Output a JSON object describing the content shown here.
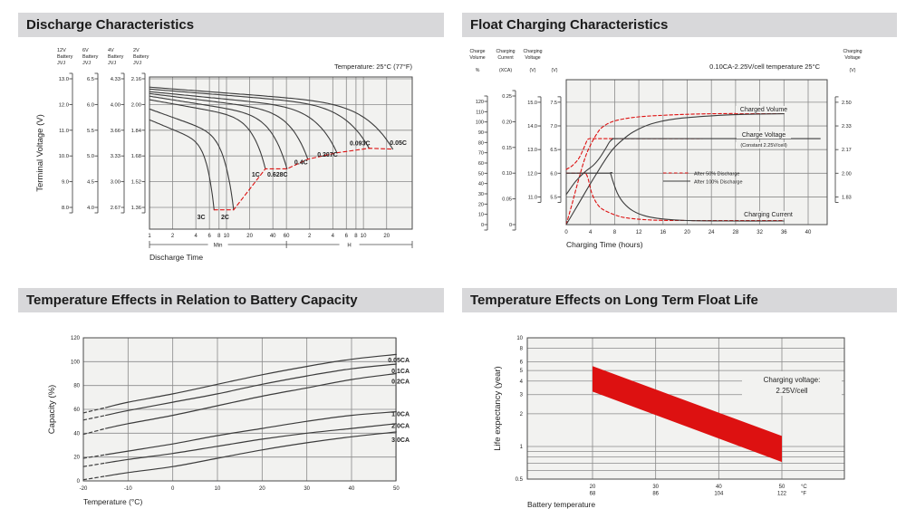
{
  "colors": {
    "header_bg": "#d8d8da",
    "header_text": "#1b1b1b",
    "plot_bg": "#f2f2f0",
    "grid": "#8a8a8a",
    "border": "#4a4a4a",
    "curve": "#3c3c3c",
    "red": "#dd1111"
  },
  "chart_data": [
    {
      "id": "discharge",
      "type": "line",
      "title": "Discharge Characteristics",
      "note": "Temperature: 25°C (77°F)",
      "ylabel": "Terminal Voltage (V)",
      "xlabel": "Discharge Time",
      "x_range_labels": [
        "Min",
        "H"
      ],
      "y_scales": [
        {
          "header": [
            "12V",
            "Battery",
            "JVJ"
          ],
          "ticks": [
            "13.0",
            "12.0",
            "11.0",
            "10.0",
            "9.0",
            "8.0"
          ]
        },
        {
          "header": [
            "6V",
            "Battery",
            "JVJ"
          ],
          "ticks": [
            "6.5",
            "6.0",
            "5.5",
            "5.0",
            "4.5",
            "4.0"
          ]
        },
        {
          "header": [
            "4V",
            "Battery",
            "JVJ"
          ],
          "ticks": [
            "4.33",
            "4.00",
            "3.66",
            "3.33",
            "3.00",
            "2.67"
          ]
        },
        {
          "header": [
            "2V",
            "Battery",
            "JVJ"
          ],
          "ticks": [
            "2.16",
            "2.00",
            "1.84",
            "1.68",
            "1.52",
            "1.36"
          ]
        }
      ],
      "y2v_gridlines": [
        2.16,
        2.0,
        1.84,
        1.68,
        1.52,
        1.36
      ],
      "x_ticks_minutes": [
        1,
        2,
        4,
        6,
        8,
        10,
        20,
        40,
        60
      ],
      "x_ticks_hours": [
        2,
        4,
        6,
        8,
        10,
        20
      ],
      "series": [
        {
          "name": "3C",
          "v_start": 1.905,
          "t_end_min": 6.9,
          "v_end": 1.345,
          "label_t": 4.7,
          "label_v": 1.298
        },
        {
          "name": "2C",
          "v_start": 1.972,
          "t_end_min": 12.4,
          "v_end": 1.345,
          "label_t": 9.6,
          "label_v": 1.298
        },
        {
          "name": "1C",
          "v_start": 2.03,
          "t_end_min": 32,
          "v_end": 1.6,
          "label_t": 24,
          "label_v": 1.562
        },
        {
          "name": "0.628C",
          "v_start": 2.052,
          "t_end_min": 61,
          "v_end": 1.6,
          "label_t": 46,
          "label_v": 1.562
        },
        {
          "name": "0.4C",
          "v_start": 2.068,
          "t_end_min": 114,
          "v_end": 1.66,
          "label_t": 93,
          "label_v": 1.638
        },
        {
          "name": "0.207C",
          "v_start": 2.08,
          "t_end_min": 272,
          "v_end": 1.7,
          "label_t": 205,
          "label_v": 1.686
        },
        {
          "name": "0.093C",
          "v_start": 2.096,
          "t_end_min": 710,
          "v_end": 1.728,
          "label_t": 540,
          "label_v": 1.756
        },
        {
          "name": "0.05C",
          "v_start": 2.108,
          "t_end_min": 1440,
          "v_end": 1.723,
          "label_t": 1700,
          "label_v": 1.76
        }
      ]
    },
    {
      "id": "float_charging",
      "type": "line",
      "title": "Float Charging Characteristics",
      "note": "0.10CA-2.25V/cell  temperature 25°C",
      "xlabel": "Charging Time (hours)",
      "x_ticks": [
        0,
        4,
        8,
        12,
        16,
        20,
        24,
        28,
        32,
        36,
        40
      ],
      "y_scales_left": [
        {
          "header": [
            "Charge",
            "Volume"
          ],
          "unit": "%",
          "ticks": [
            "120",
            "110",
            "100",
            "90",
            "80",
            "70",
            "60",
            "50",
            "40",
            "30",
            "20",
            "10",
            "0"
          ]
        },
        {
          "header": [
            "Charging",
            "Current"
          ],
          "unit": "(XCA)",
          "ticks": [
            "0.25",
            "0.20",
            "0.15",
            "0.10",
            "0.05",
            "0"
          ]
        },
        {
          "header": [
            "Charging",
            "Voltage"
          ],
          "unit": "(V)",
          "ticks": [
            "15.0",
            "14.0",
            "13.0",
            "12.0",
            "11.0"
          ]
        },
        {
          "header": [],
          "unit": "(V)",
          "ticks": [
            "7.5",
            "7.0",
            "6.5",
            "6.0",
            "5.5"
          ]
        }
      ],
      "y_scale_right": {
        "header": [
          "Charging",
          "Voltage"
        ],
        "unit": "(V)",
        "ticks": [
          "2.50",
          "2.33",
          "2.17",
          "2.00",
          "1.83"
        ]
      },
      "annotations": {
        "charged_volume": "Charged Volume",
        "charge_voltage": "Charge Voltage",
        "constant": "(Constant 2.25V/cell)",
        "charging_current": "Charging Current"
      },
      "legend": [
        {
          "label": "After  50% Discharge",
          "style": "dashed"
        },
        {
          "label": "After 100% Discharge",
          "style": "solid"
        }
      ],
      "series": [
        {
          "name": "charged-volume-50",
          "style": "dashed",
          "scale": "volume",
          "points": [
            [
              0,
              0
            ],
            [
              1,
              21
            ],
            [
              2,
              43
            ],
            [
              3,
              63
            ],
            [
              3.8,
              75
            ],
            [
              5,
              88
            ],
            [
              6,
              95
            ],
            [
              8,
              101
            ],
            [
              12,
              105
            ],
            [
              18,
              107
            ],
            [
              24,
              108
            ],
            [
              36,
              108.5
            ]
          ]
        },
        {
          "name": "charged-volume-100",
          "style": "solid",
          "scale": "volume",
          "points": [
            [
              0,
              0
            ],
            [
              2,
              20
            ],
            [
              4,
              40
            ],
            [
              6,
              59
            ],
            [
              7.5,
              72
            ],
            [
              9,
              81
            ],
            [
              11,
              90
            ],
            [
              14,
              98
            ],
            [
              18,
              103
            ],
            [
              24,
              106
            ],
            [
              30,
              107.5
            ],
            [
              36,
              108
            ]
          ]
        },
        {
          "name": "charge-voltage-50",
          "style": "dashed",
          "scale": "v6",
          "points": [
            [
              0,
              6.08
            ],
            [
              1,
              6.16
            ],
            [
              2,
              6.3
            ],
            [
              2.8,
              6.5
            ],
            [
              3.4,
              6.68
            ],
            [
              3.8,
              6.73
            ],
            [
              5,
              6.73
            ],
            [
              8,
              6.73
            ],
            [
              16,
              6.73
            ],
            [
              22.5,
              6.73
            ]
          ]
        },
        {
          "name": "charge-voltage-100",
          "style": "solid",
          "scale": "v6",
          "points": [
            [
              0,
              5.55
            ],
            [
              1.5,
              5.82
            ],
            [
              3,
              6.02
            ],
            [
              4.5,
              6.17
            ],
            [
              5.5,
              6.32
            ],
            [
              6.5,
              6.52
            ],
            [
              7.2,
              6.67
            ],
            [
              7.8,
              6.73
            ],
            [
              8.5,
              6.73
            ],
            [
              16,
              6.73
            ],
            [
              42,
              6.73
            ]
          ]
        },
        {
          "name": "charging-current-50",
          "style": "dashed",
          "scale": "current",
          "points": [
            [
              0,
              0.1
            ],
            [
              3,
              0.1
            ],
            [
              3.2,
              0.1
            ],
            [
              3.6,
              0.09
            ],
            [
              4.2,
              0.062
            ],
            [
              5,
              0.042
            ],
            [
              6,
              0.03
            ],
            [
              8,
              0.019
            ],
            [
              10,
              0.013
            ],
            [
              14,
              0.009
            ],
            [
              20,
              0.008
            ],
            [
              36,
              0.008
            ]
          ]
        },
        {
          "name": "charging-current-100",
          "style": "solid",
          "scale": "current",
          "points": [
            [
              0,
              0.1
            ],
            [
              7,
              0.1
            ],
            [
              7.3,
              0.1
            ],
            [
              7.7,
              0.085
            ],
            [
              8.5,
              0.06
            ],
            [
              9.5,
              0.042
            ],
            [
              11,
              0.027
            ],
            [
              13,
              0.017
            ],
            [
              16,
              0.011
            ],
            [
              20,
              0.008
            ],
            [
              26,
              0.007
            ],
            [
              36,
              0.007
            ]
          ]
        }
      ]
    },
    {
      "id": "temp_capacity",
      "type": "line",
      "title": "Temperature Effects in Relation to Battery Capacity",
      "ylabel": "Capacity (%)",
      "xlabel": "Temperature (°C)",
      "x_ticks": [
        -20,
        -10,
        0,
        10,
        20,
        30,
        40,
        50
      ],
      "y_ticks": [
        0,
        20,
        40,
        60,
        80,
        100,
        120
      ],
      "dashed_below_c": -15,
      "series": [
        {
          "name": "0.05CA",
          "label_cap": 101,
          "points": [
            [
              -20,
              57
            ],
            [
              -15,
              61.5
            ],
            [
              -10,
              66
            ],
            [
              0,
              73
            ],
            [
              10,
              81
            ],
            [
              20,
              89
            ],
            [
              30,
              96
            ],
            [
              40,
              102
            ],
            [
              50,
              106
            ]
          ]
        },
        {
          "name": "0.1CA",
          "label_cap": 92,
          "points": [
            [
              -20,
              51
            ],
            [
              -15,
              55
            ],
            [
              -10,
              59
            ],
            [
              0,
              66
            ],
            [
              10,
              73
            ],
            [
              20,
              81
            ],
            [
              30,
              88
            ],
            [
              40,
              94
            ],
            [
              50,
              98
            ]
          ]
        },
        {
          "name": "0.2CA",
          "label_cap": 83,
          "points": [
            [
              -20,
              39
            ],
            [
              -15,
              44
            ],
            [
              -10,
              48
            ],
            [
              0,
              55
            ],
            [
              10,
              63
            ],
            [
              20,
              71
            ],
            [
              30,
              78
            ],
            [
              40,
              85
            ],
            [
              50,
              90
            ]
          ]
        },
        {
          "name": "1.0CA",
          "label_cap": 56,
          "points": [
            [
              -20,
              19
            ],
            [
              -15,
              22
            ],
            [
              -10,
              25
            ],
            [
              0,
              31
            ],
            [
              10,
              38
            ],
            [
              20,
              44
            ],
            [
              30,
              50
            ],
            [
              40,
              55
            ],
            [
              50,
              58
            ]
          ]
        },
        {
          "name": "2.0CA",
          "label_cap": 46,
          "points": [
            [
              -20,
              12
            ],
            [
              -15,
              15
            ],
            [
              -10,
              18
            ],
            [
              0,
              23
            ],
            [
              10,
              29
            ],
            [
              20,
              35
            ],
            [
              30,
              40
            ],
            [
              40,
              44
            ],
            [
              50,
              48
            ]
          ]
        },
        {
          "name": "3.0CA",
          "label_cap": 34,
          "points": [
            [
              -20,
              1
            ],
            [
              -15,
              4
            ],
            [
              -10,
              7
            ],
            [
              0,
              12
            ],
            [
              10,
              19
            ],
            [
              20,
              26
            ],
            [
              30,
              32
            ],
            [
              40,
              37
            ],
            [
              50,
              41
            ]
          ]
        }
      ]
    },
    {
      "id": "float_life",
      "type": "area",
      "title": "Temperature Effects on Long Term Float Life",
      "ylabel": "Life expectancy (year)",
      "xlabel": "Battery temperature",
      "annotation": [
        "Charging voltage:",
        "2.25V/cell"
      ],
      "y_ticks_labeled": [
        10,
        8,
        6,
        5,
        4,
        3,
        2,
        1,
        0.5
      ],
      "y_gridlines": [
        10,
        8,
        6,
        5,
        4,
        3,
        2,
        1,
        0.9,
        0.8,
        0.7,
        0.6,
        0.5
      ],
      "x_ticks": [
        {
          "c": "20",
          "f": "68"
        },
        {
          "c": "30",
          "f": "86"
        },
        {
          "c": "40",
          "f": "104"
        },
        {
          "c": "50",
          "f": "122"
        }
      ],
      "x_unit_labels": [
        "°C",
        "°F"
      ],
      "band": {
        "upper": [
          [
            20,
            5.5
          ],
          [
            50,
            1.25
          ]
        ],
        "lower": [
          [
            20,
            3.2
          ],
          [
            50,
            0.72
          ]
        ]
      }
    }
  ]
}
